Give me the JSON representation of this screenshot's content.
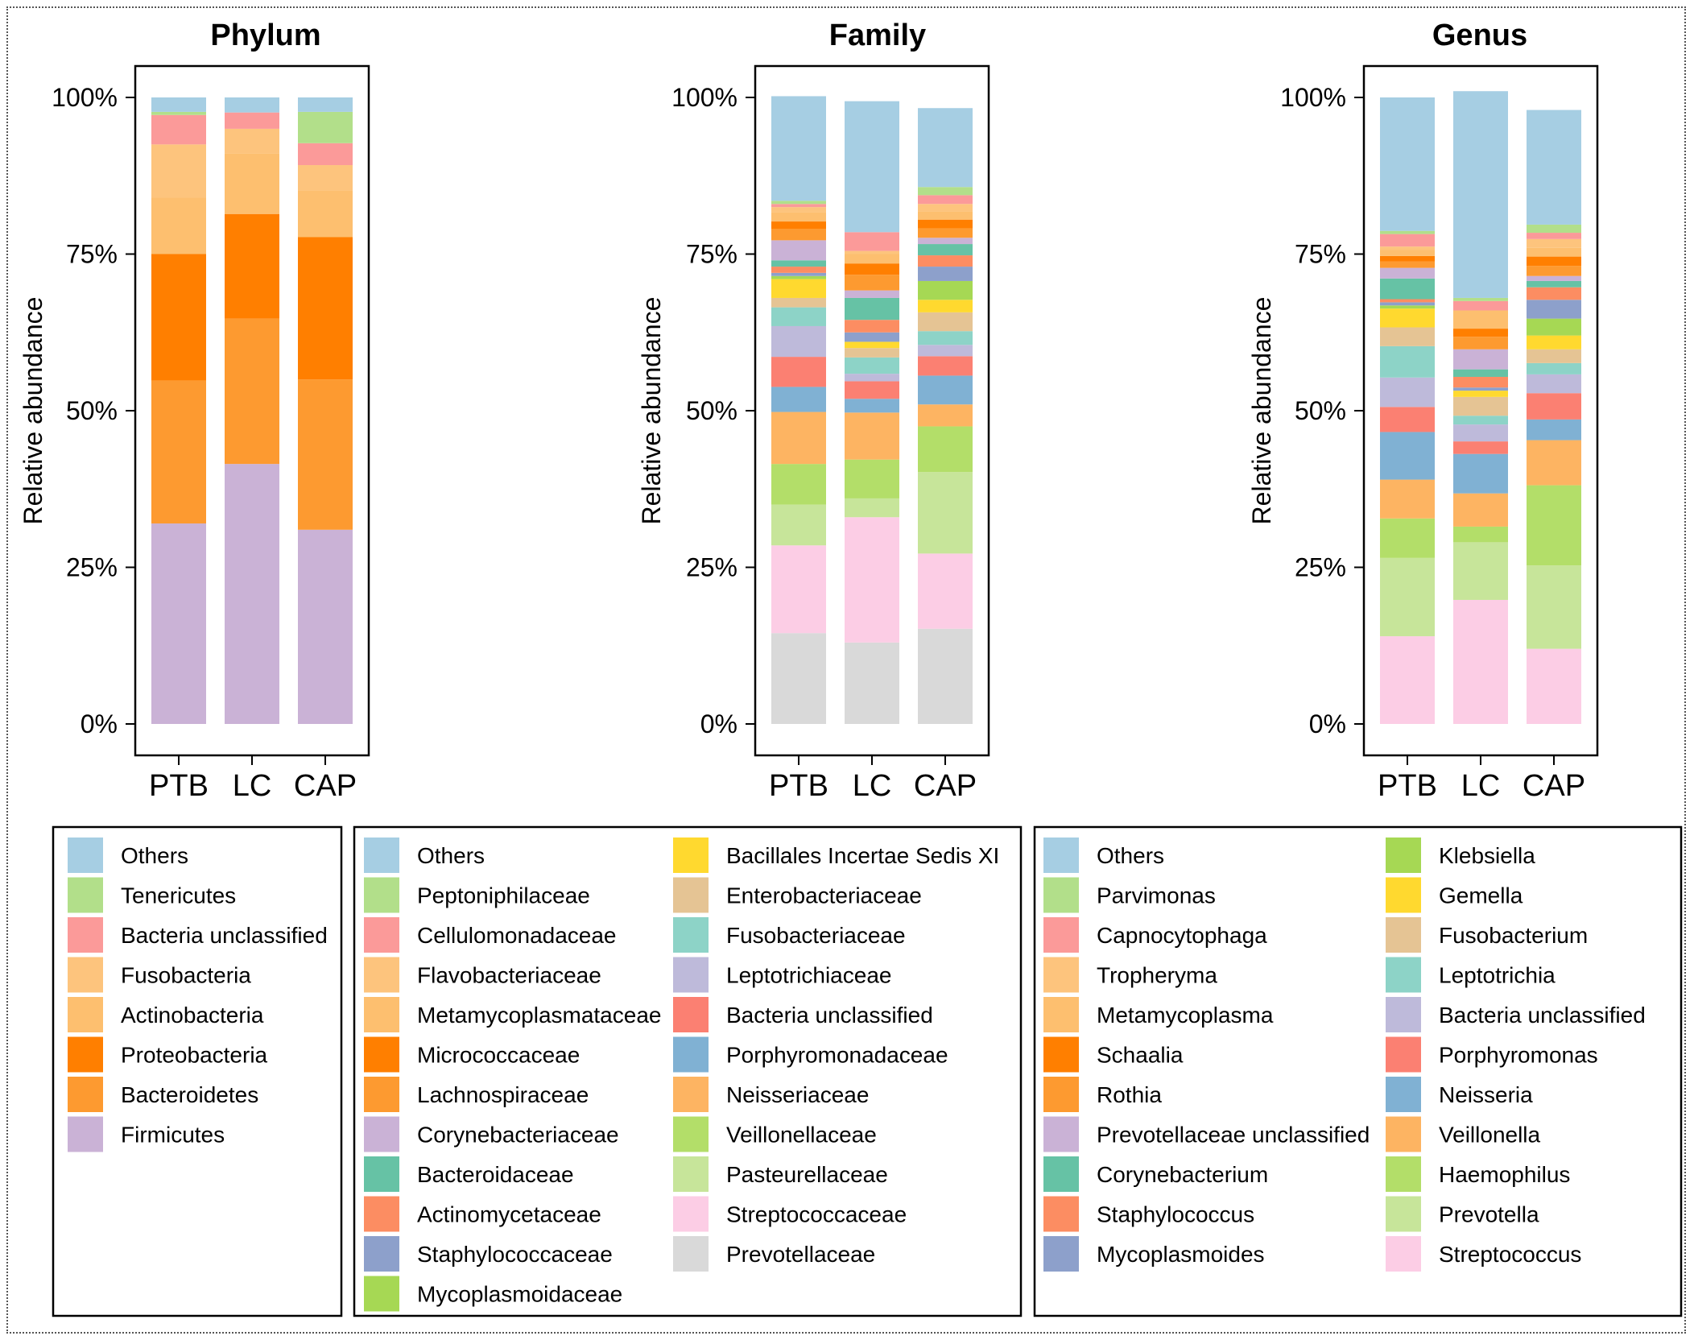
{
  "colors": {
    "Others": "#a6cee3",
    "light_green": "#b2df8a",
    "salmon": "#fb9a99",
    "peach": "#fdc47d",
    "light_orange": "#fdbf6f",
    "dark_orange": "#ff7f00",
    "orange": "#fd9a30",
    "lilac": "#cab2d6",
    "teal": "#66c2a5",
    "coral": "#fc8d62",
    "periwinkle": "#8da0cb",
    "lime": "#a6d854",
    "yellow": "#ffd92f",
    "tan": "#e5c494",
    "mint": "#8dd3c7",
    "lavender": "#bebada",
    "red_salmon": "#fb8072",
    "steel_blue": "#80b1d3",
    "sand_orange": "#fdb462",
    "yellow_green": "#b3de69",
    "pale_green": "#c7e59a",
    "pink": "#fccde5",
    "gray": "#d9d9d9"
  },
  "chart_data": [
    {
      "type": "bar",
      "stacked": true,
      "title": "Phylum",
      "xlabel": "",
      "ylabel": "Relative abundance",
      "ylim": [
        0,
        100
      ],
      "y_ticks": [
        "0%",
        "25%",
        "50%",
        "75%",
        "100%"
      ],
      "categories": [
        "PTB",
        "LC",
        "CAP"
      ],
      "series": [
        {
          "name": "Firmicutes",
          "color": "#cab2d6",
          "values": [
            32.0,
            41.5,
            31.0
          ]
        },
        {
          "name": "Bacteroidetes",
          "color": "#fd9a30",
          "values": [
            22.8,
            23.2,
            24.0
          ]
        },
        {
          "name": "Proteobacteria",
          "color": "#ff7f00",
          "values": [
            20.2,
            16.7,
            22.7
          ]
        },
        {
          "name": "Actinobacteria",
          "color": "#fdbf6f",
          "values": [
            9.0,
            9.7,
            7.5
          ]
        },
        {
          "name": "Fusobacteria",
          "color": "#fdc47d",
          "values": [
            8.5,
            3.9,
            4.0
          ]
        },
        {
          "name": "Bacteria unclassified",
          "color": "#fb9a99",
          "values": [
            4.7,
            2.6,
            3.5
          ]
        },
        {
          "name": "Tenericutes",
          "color": "#b2df8a",
          "values": [
            0.5,
            0.0,
            5.0
          ]
        },
        {
          "name": "Others",
          "color": "#a6cee3",
          "values": [
            2.3,
            2.4,
            2.3
          ]
        }
      ],
      "legend": [
        "Others",
        "Tenericutes",
        "Bacteria unclassified",
        "Fusobacteria",
        "Actinobacteria",
        "Proteobacteria",
        "Bacteroidetes",
        "Firmicutes"
      ]
    },
    {
      "type": "bar",
      "stacked": true,
      "title": "Family",
      "xlabel": "",
      "ylabel": "Relative abundance",
      "ylim": [
        0,
        100
      ],
      "y_ticks": [
        "0%",
        "25%",
        "50%",
        "75%",
        "100%"
      ],
      "categories": [
        "PTB",
        "LC",
        "CAP"
      ],
      "series": [
        {
          "name": "Prevotellaceae",
          "color": "#d9d9d9",
          "values": [
            14.5,
            13.0,
            15.2
          ]
        },
        {
          "name": "Streptococcaceae",
          "color": "#fccde5",
          "values": [
            14.0,
            20.0,
            12.0
          ]
        },
        {
          "name": "Pasteurellaceae",
          "color": "#c7e59a",
          "values": [
            6.5,
            3.0,
            13.0
          ]
        },
        {
          "name": "Veillonellaceae",
          "color": "#b3de69",
          "values": [
            6.5,
            6.2,
            7.3
          ]
        },
        {
          "name": "Neisseriaceae",
          "color": "#fdb462",
          "values": [
            8.3,
            7.5,
            3.5
          ]
        },
        {
          "name": "Porphyromonadaceae",
          "color": "#80b1d3",
          "values": [
            4.0,
            2.2,
            4.6
          ]
        },
        {
          "name": "Bacteria unclassified",
          "color": "#fb8072",
          "values": [
            4.8,
            2.8,
            3.1
          ]
        },
        {
          "name": "Leptotrichiaceae",
          "color": "#bebada",
          "values": [
            4.9,
            1.2,
            1.8
          ]
        },
        {
          "name": "Fusobacteriaceae",
          "color": "#8dd3c7",
          "values": [
            3.0,
            2.6,
            2.2
          ]
        },
        {
          "name": "Enterobacteriaceae",
          "color": "#e5c494",
          "values": [
            1.5,
            1.5,
            3.0
          ]
        },
        {
          "name": "Bacillales Incertae Sedis XI",
          "color": "#ffd92f",
          "values": [
            3.0,
            1.0,
            2.0
          ]
        },
        {
          "name": "Mycoplasmoidaceae",
          "color": "#a6d854",
          "values": [
            0.5,
            0.0,
            3.0
          ]
        },
        {
          "name": "Staphylococcaceae",
          "color": "#8da0cb",
          "values": [
            0.5,
            1.5,
            2.3
          ]
        },
        {
          "name": "Actinomycetaceae",
          "color": "#fc8d62",
          "values": [
            1.0,
            2.0,
            1.8
          ]
        },
        {
          "name": "Bacteroidaceae",
          "color": "#66c2a5",
          "values": [
            1.0,
            3.5,
            1.8
          ]
        },
        {
          "name": "Corynebacteriaceae",
          "color": "#cab2d6",
          "values": [
            3.2,
            1.2,
            1.0
          ]
        },
        {
          "name": "Lachnospiraceae",
          "color": "#fd9a30",
          "values": [
            1.8,
            2.5,
            1.5
          ]
        },
        {
          "name": "Micrococcaceae",
          "color": "#ff7f00",
          "values": [
            1.2,
            1.8,
            1.4
          ]
        },
        {
          "name": "Metamycoplasmataceae",
          "color": "#fdbf6f",
          "values": [
            1.5,
            1.5,
            1.3
          ]
        },
        {
          "name": "Flavobacteriaceae",
          "color": "#fdc47d",
          "values": [
            0.8,
            0.5,
            1.2
          ]
        },
        {
          "name": "Cellulomonadaceae",
          "color": "#fb9a99",
          "values": [
            0.5,
            3.0,
            1.4
          ]
        },
        {
          "name": "Peptoniphilaceae",
          "color": "#b2df8a",
          "values": [
            0.5,
            0.0,
            1.3
          ]
        },
        {
          "name": "Others",
          "color": "#a6cee3",
          "values": [
            16.7,
            20.9,
            12.6
          ]
        }
      ],
      "legend": [
        "Others",
        "Peptoniphilaceae",
        "Cellulomonadaceae",
        "Flavobacteriaceae",
        "Metamycoplasmataceae",
        "Micrococcaceae",
        "Lachnospiraceae",
        "Corynebacteriaceae",
        "Bacteroidaceae",
        "Actinomycetaceae",
        "Staphylococcaceae",
        "Mycoplasmoidaceae",
        "Bacillales Incertae Sedis XI",
        "Enterobacteriaceae",
        "Fusobacteriaceae",
        "Leptotrichiaceae",
        "Bacteria unclassified",
        "Porphyromonadaceae",
        "Neisseriaceae",
        "Veillonellaceae",
        "Pasteurellaceae",
        "Streptococcaceae",
        "Prevotellaceae"
      ]
    },
    {
      "type": "bar",
      "stacked": true,
      "title": "Genus",
      "xlabel": "",
      "ylabel": "Relative abundance",
      "ylim": [
        0,
        100
      ],
      "y_ticks": [
        "0%",
        "25%",
        "50%",
        "75%",
        "100%"
      ],
      "categories": [
        "PTB",
        "LC",
        "CAP"
      ],
      "series": [
        {
          "name": "Streptococcus",
          "color": "#fccde5",
          "values": [
            14.0,
            19.8,
            12.0
          ]
        },
        {
          "name": "Prevotella",
          "color": "#c7e59a",
          "values": [
            12.5,
            9.2,
            13.3
          ]
        },
        {
          "name": "Haemophilus",
          "color": "#b3de69",
          "values": [
            6.3,
            2.5,
            12.8
          ]
        },
        {
          "name": "Veillonella",
          "color": "#fdb462",
          "values": [
            6.2,
            5.3,
            7.2
          ]
        },
        {
          "name": "Neisseria",
          "color": "#80b1d3",
          "values": [
            7.6,
            6.3,
            3.3
          ]
        },
        {
          "name": "Porphyromonas",
          "color": "#fb8072",
          "values": [
            4.0,
            2.0,
            4.2
          ]
        },
        {
          "name": "Bacteria unclassified",
          "color": "#bebada",
          "values": [
            4.7,
            2.7,
            3.0
          ]
        },
        {
          "name": "Leptotrichia",
          "color": "#8dd3c7",
          "values": [
            5.0,
            1.4,
            1.8
          ]
        },
        {
          "name": "Fusobacterium",
          "color": "#e5c494",
          "values": [
            3.0,
            3.0,
            2.2
          ]
        },
        {
          "name": "Gemella",
          "color": "#ffd92f",
          "values": [
            3.0,
            1.0,
            2.2
          ]
        },
        {
          "name": "Klebsiella",
          "color": "#a6d854",
          "values": [
            0.5,
            0.0,
            2.7
          ]
        },
        {
          "name": "Mycoplasmoides",
          "color": "#8da0cb",
          "values": [
            0.5,
            0.5,
            3.0
          ]
        },
        {
          "name": "Staphylococcus",
          "color": "#fc8d62",
          "values": [
            0.5,
            1.7,
            2.0
          ]
        },
        {
          "name": "Corynebacterium",
          "color": "#66c2a5",
          "values": [
            3.3,
            1.2,
            1.0
          ]
        },
        {
          "name": "Prevotellaceae unclassified",
          "color": "#cab2d6",
          "values": [
            1.7,
            3.2,
            0.8
          ]
        },
        {
          "name": "Rothia",
          "color": "#fd9a30",
          "values": [
            1.0,
            2.0,
            1.6
          ]
        },
        {
          "name": "Schaalia",
          "color": "#ff7f00",
          "values": [
            0.9,
            1.3,
            1.5
          ]
        },
        {
          "name": "Metamycoplasma",
          "color": "#fdbf6f",
          "values": [
            1.0,
            2.9,
            1.4
          ]
        },
        {
          "name": "Tropheryma",
          "color": "#fdc47d",
          "values": [
            0.5,
            0.0,
            1.4
          ]
        },
        {
          "name": "Capnocytophaga",
          "color": "#fb9a99",
          "values": [
            2.0,
            1.5,
            1.0
          ]
        },
        {
          "name": "Parvimonas",
          "color": "#b2df8a",
          "values": [
            0.5,
            0.5,
            1.3
          ]
        },
        {
          "name": "Others",
          "color": "#a6cee3",
          "values": [
            21.3,
            33.0,
            18.3
          ]
        }
      ],
      "legend": [
        "Others",
        "Parvimonas",
        "Capnocytophaga",
        "Tropheryma",
        "Metamycoplasma",
        "Schaalia",
        "Rothia",
        "Prevotellaceae unclassified",
        "Corynebacterium",
        "Staphylococcus",
        "Mycoplasmoides",
        "Klebsiella",
        "Gemella",
        "Fusobacterium",
        "Leptotrichia",
        "Bacteria unclassified",
        "Porphyromonas",
        "Neisseria",
        "Veillonella",
        "Haemophilus",
        "Prevotella",
        "Streptococcus"
      ]
    }
  ]
}
